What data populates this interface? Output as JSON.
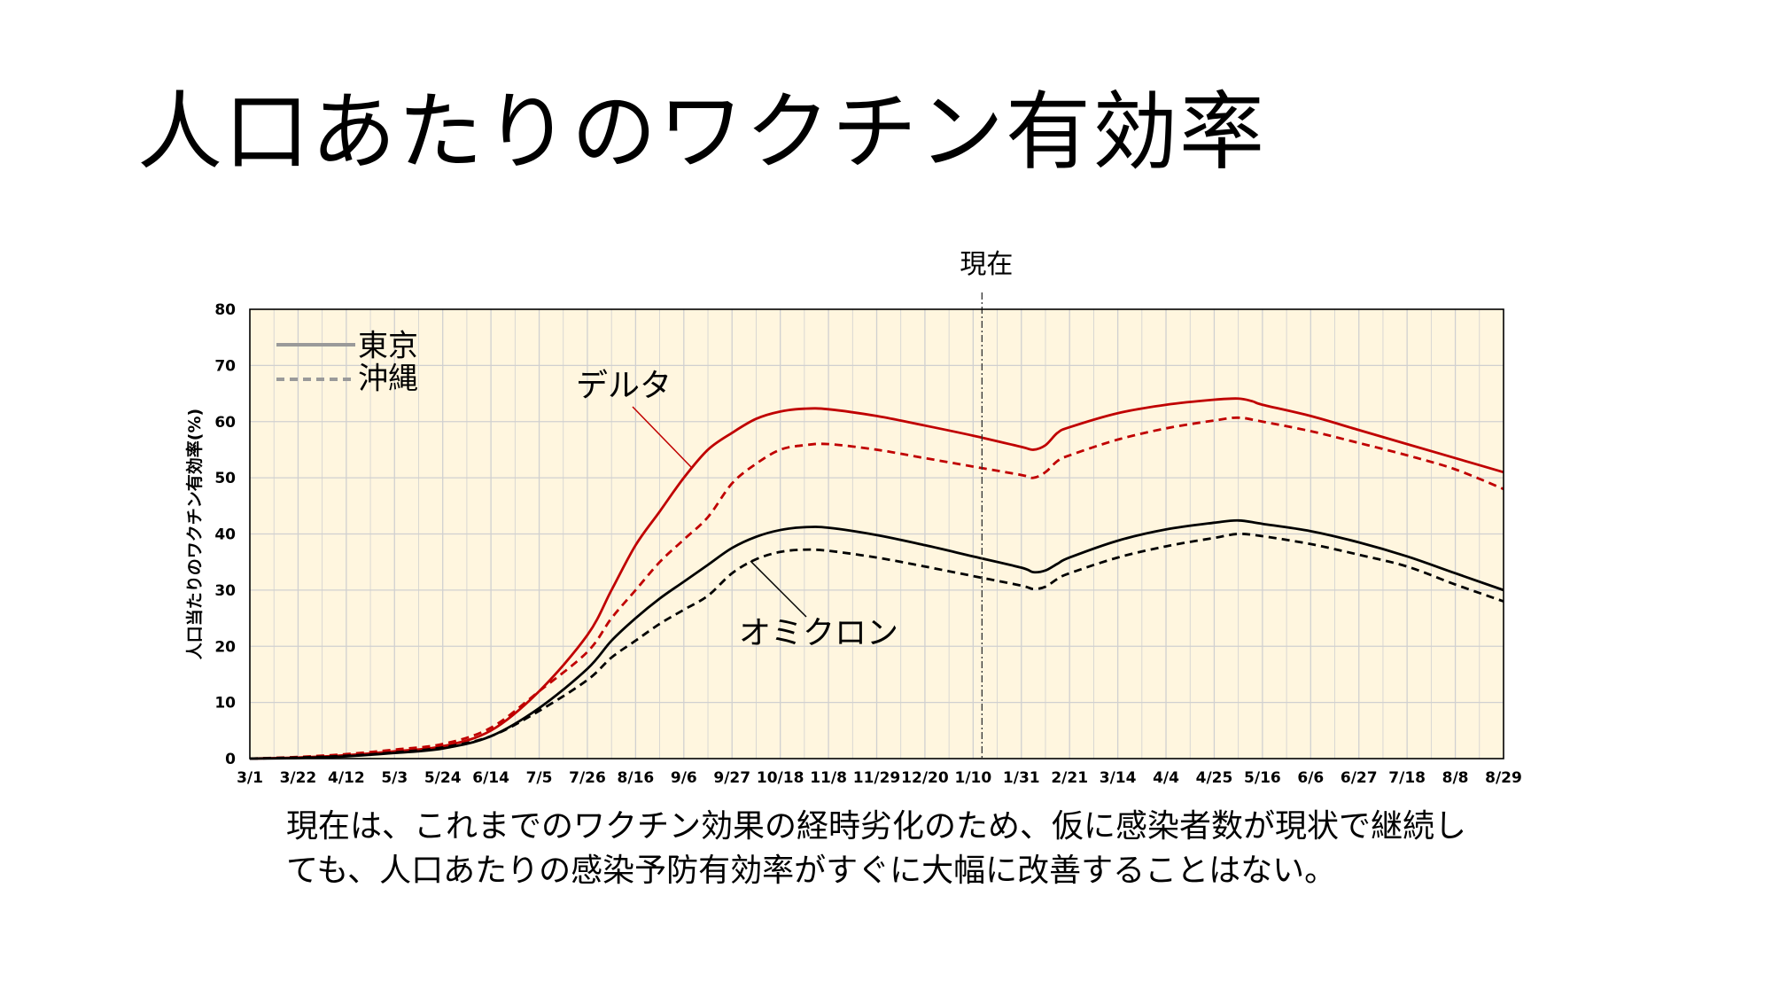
{
  "slide": {
    "title": "人口あたりのワクチン有効率",
    "caption_lines": [
      "現在は、これまでのワクチン効果の経時劣化のため、仮に感染者数が現状で継続し",
      "ても、人口あたりの感染予防有効率がすぐに大幅に改善することはない。"
    ]
  },
  "colors": {
    "plot_bg": "#FFF6DF",
    "grid": "#D0D0D0",
    "delta": "#C00000",
    "omicron": "#000000",
    "legend": "#9A9A9A"
  },
  "chart_data": {
    "type": "line",
    "title": "",
    "xlabel": "",
    "ylabel": "人口当たりのワクチン有効率(%)",
    "ylim": [
      0,
      80
    ],
    "yticks": [
      0,
      10,
      20,
      30,
      40,
      50,
      60,
      70,
      80
    ],
    "x_tick_labels": [
      "3/1",
      "3/22",
      "4/12",
      "5/3",
      "5/24",
      "6/14",
      "7/5",
      "7/26",
      "8/16",
      "9/6",
      "9/27",
      "10/18",
      "11/8",
      "11/29",
      "12/20",
      "1/10",
      "1/31",
      "2/21",
      "3/14",
      "4/4",
      "4/25",
      "5/16",
      "6/6",
      "6/27",
      "7/18",
      "8/8",
      "8/29"
    ],
    "grid": true,
    "legend": {
      "placement": "top-left",
      "entries": [
        {
          "label": "東京",
          "style": "solid"
        },
        {
          "label": "沖縄",
          "style": "dashed"
        }
      ]
    },
    "annotations": [
      {
        "text": "現在",
        "type": "vertical-line",
        "x_label": "1/10"
      },
      {
        "text": "デルタ",
        "target": "delta"
      },
      {
        "text": "オミクロン",
        "target": "omicron"
      }
    ],
    "series": [
      {
        "group": "delta",
        "style": "solid",
        "color": "#C00000",
        "points": [
          [
            0,
            0
          ],
          [
            1,
            0.2
          ],
          [
            2,
            0.6
          ],
          [
            3,
            1.3
          ],
          [
            4,
            2.2
          ],
          [
            5,
            5
          ],
          [
            6,
            12
          ],
          [
            7,
            22
          ],
          [
            7.5,
            30
          ],
          [
            8,
            38
          ],
          [
            8.5,
            44
          ],
          [
            9,
            50
          ],
          [
            9.5,
            55
          ],
          [
            10,
            58
          ],
          [
            10.5,
            60.5
          ],
          [
            11,
            61.8
          ],
          [
            11.5,
            62.3
          ],
          [
            12,
            62.2
          ],
          [
            13,
            61
          ],
          [
            14,
            59.3
          ],
          [
            15,
            57.5
          ],
          [
            16,
            55.5
          ],
          [
            16.25,
            55
          ],
          [
            16.5,
            55.8
          ],
          [
            16.75,
            58
          ],
          [
            17,
            59
          ],
          [
            18,
            61.5
          ],
          [
            19,
            63
          ],
          [
            20,
            63.9
          ],
          [
            20.5,
            64.1
          ],
          [
            20.8,
            63.6
          ],
          [
            21,
            63
          ],
          [
            22,
            61
          ],
          [
            23,
            58.5
          ],
          [
            24,
            56
          ],
          [
            25,
            53.5
          ],
          [
            26,
            51
          ]
        ]
      },
      {
        "group": "delta",
        "style": "dashed",
        "color": "#C00000",
        "points": [
          [
            0,
            0
          ],
          [
            1,
            0.3
          ],
          [
            2,
            0.8
          ],
          [
            3,
            1.6
          ],
          [
            4,
            2.6
          ],
          [
            5,
            5.5
          ],
          [
            6,
            12
          ],
          [
            7,
            19
          ],
          [
            7.5,
            25
          ],
          [
            8,
            30
          ],
          [
            8.5,
            35
          ],
          [
            9,
            39
          ],
          [
            9.5,
            43
          ],
          [
            10,
            49
          ],
          [
            10.5,
            52.5
          ],
          [
            11,
            55
          ],
          [
            11.5,
            55.8
          ],
          [
            12,
            56
          ],
          [
            13,
            55
          ],
          [
            14,
            53.5
          ],
          [
            15,
            52
          ],
          [
            16,
            50.5
          ],
          [
            16.25,
            50
          ],
          [
            16.5,
            51
          ],
          [
            16.75,
            53
          ],
          [
            17,
            54
          ],
          [
            18,
            56.8
          ],
          [
            19,
            58.8
          ],
          [
            20,
            60.2
          ],
          [
            20.5,
            60.7
          ],
          [
            21,
            60
          ],
          [
            22,
            58.3
          ],
          [
            23,
            56.2
          ],
          [
            24,
            54
          ],
          [
            25,
            51.5
          ],
          [
            26,
            48
          ]
        ]
      },
      {
        "group": "omicron",
        "style": "solid",
        "color": "#000000",
        "points": [
          [
            0,
            0
          ],
          [
            1,
            0.1
          ],
          [
            2,
            0.4
          ],
          [
            3,
            1
          ],
          [
            4,
            1.8
          ],
          [
            5,
            4
          ],
          [
            6,
            9
          ],
          [
            7,
            16
          ],
          [
            7.5,
            21
          ],
          [
            8,
            25
          ],
          [
            8.5,
            28.5
          ],
          [
            9,
            31.5
          ],
          [
            9.5,
            34.5
          ],
          [
            10,
            37.5
          ],
          [
            10.5,
            39.5
          ],
          [
            11,
            40.7
          ],
          [
            11.5,
            41.2
          ],
          [
            12,
            41.1
          ],
          [
            13,
            39.8
          ],
          [
            14,
            38
          ],
          [
            15,
            36
          ],
          [
            16,
            34
          ],
          [
            16.25,
            33.2
          ],
          [
            16.5,
            33.5
          ],
          [
            16.75,
            34.7
          ],
          [
            17,
            35.8
          ],
          [
            18,
            38.8
          ],
          [
            19,
            40.8
          ],
          [
            20,
            42
          ],
          [
            20.5,
            42.4
          ],
          [
            21,
            41.8
          ],
          [
            22,
            40.5
          ],
          [
            23,
            38.5
          ],
          [
            24,
            36
          ],
          [
            25,
            33
          ],
          [
            26,
            30
          ]
        ]
      },
      {
        "group": "omicron",
        "style": "dashed",
        "color": "#000000",
        "points": [
          [
            0,
            0
          ],
          [
            1,
            0.2
          ],
          [
            2,
            0.5
          ],
          [
            3,
            1.1
          ],
          [
            4,
            2
          ],
          [
            5,
            4
          ],
          [
            6,
            8.5
          ],
          [
            7,
            14
          ],
          [
            7.5,
            18
          ],
          [
            8,
            21
          ],
          [
            8.5,
            24
          ],
          [
            9,
            26.5
          ],
          [
            9.5,
            29
          ],
          [
            10,
            33
          ],
          [
            10.5,
            35.5
          ],
          [
            11,
            36.8
          ],
          [
            11.5,
            37.2
          ],
          [
            12,
            37
          ],
          [
            13,
            35.8
          ],
          [
            14,
            34.2
          ],
          [
            15,
            32.5
          ],
          [
            16,
            30.8
          ],
          [
            16.25,
            30.2
          ],
          [
            16.5,
            30.6
          ],
          [
            16.75,
            32
          ],
          [
            17,
            33
          ],
          [
            18,
            35.8
          ],
          [
            19,
            37.8
          ],
          [
            20,
            39.3
          ],
          [
            20.5,
            40
          ],
          [
            21,
            39.6
          ],
          [
            22,
            38.2
          ],
          [
            23,
            36.3
          ],
          [
            24,
            34.2
          ],
          [
            25,
            31
          ],
          [
            26,
            28
          ]
        ]
      }
    ]
  }
}
